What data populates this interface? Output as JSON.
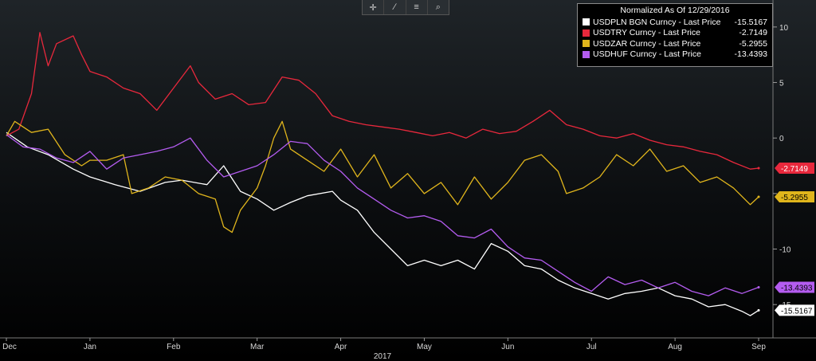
{
  "toolbar": {
    "icons": [
      "crosshair-icon",
      "draw-pencil-icon",
      "table-icon",
      "zoom-icon"
    ],
    "glyphs": [
      "✛",
      "∕",
      "≡",
      "⌕"
    ]
  },
  "chart_data": {
    "type": "line",
    "legend_title": "Normalized As Of 12/29/2016",
    "legend_placement": "top-right",
    "grid": false,
    "xlabel": "2017",
    "ylabel": "",
    "ylim": [
      -18,
      12
    ],
    "x_ticks": [
      "Dec",
      "Jan",
      "Feb",
      "Mar",
      "Apr",
      "May",
      "Jun",
      "Jul",
      "Aug",
      "Sep"
    ],
    "y_ticks": [
      10,
      5,
      0,
      -5,
      -10,
      -15
    ],
    "series": [
      {
        "name": "USDPLN BGN Curncy - Last Price",
        "last": -15.5167,
        "last_label": "-15.5167",
        "color": "#ffffff",
        "label_text_color": "#000000",
        "points": [
          [
            0,
            0.5
          ],
          [
            0.25,
            -0.8
          ],
          [
            0.5,
            -1.5
          ],
          [
            0.8,
            -2.8
          ],
          [
            1.0,
            -3.5
          ],
          [
            1.3,
            -4.2
          ],
          [
            1.6,
            -4.8
          ],
          [
            1.9,
            -4.0
          ],
          [
            2.1,
            -3.8
          ],
          [
            2.4,
            -4.2
          ],
          [
            2.6,
            -2.5
          ],
          [
            2.8,
            -4.8
          ],
          [
            3.0,
            -5.5
          ],
          [
            3.2,
            -6.5
          ],
          [
            3.4,
            -5.8
          ],
          [
            3.6,
            -5.2
          ],
          [
            3.9,
            -4.8
          ],
          [
            4.0,
            -5.6
          ],
          [
            4.2,
            -6.5
          ],
          [
            4.4,
            -8.5
          ],
          [
            4.6,
            -10.0
          ],
          [
            4.8,
            -11.5
          ],
          [
            5.0,
            -11.0
          ],
          [
            5.2,
            -11.5
          ],
          [
            5.4,
            -11.0
          ],
          [
            5.6,
            -11.8
          ],
          [
            5.8,
            -9.5
          ],
          [
            6.0,
            -10.2
          ],
          [
            6.2,
            -11.5
          ],
          [
            6.4,
            -11.8
          ],
          [
            6.6,
            -12.8
          ],
          [
            6.8,
            -13.5
          ],
          [
            7.0,
            -14.0
          ],
          [
            7.2,
            -14.5
          ],
          [
            7.4,
            -14.0
          ],
          [
            7.6,
            -13.8
          ],
          [
            7.8,
            -13.5
          ],
          [
            8.0,
            -14.2
          ],
          [
            8.2,
            -14.5
          ],
          [
            8.4,
            -15.2
          ],
          [
            8.6,
            -15.0
          ],
          [
            8.8,
            -15.6
          ],
          [
            8.9,
            -16.0
          ],
          [
            9.0,
            -15.5167
          ]
        ]
      },
      {
        "name": "USDTRY Curncy - Last Price",
        "last": -2.7149,
        "last_label": "-2.7149",
        "color": "#e8283c",
        "label_text_color": "#ffffff",
        "points": [
          [
            0,
            0.2
          ],
          [
            0.15,
            0.8
          ],
          [
            0.3,
            4.0
          ],
          [
            0.4,
            9.5
          ],
          [
            0.5,
            6.5
          ],
          [
            0.6,
            8.5
          ],
          [
            0.8,
            9.2
          ],
          [
            0.9,
            7.5
          ],
          [
            1.0,
            6.0
          ],
          [
            1.2,
            5.5
          ],
          [
            1.4,
            4.5
          ],
          [
            1.6,
            4.0
          ],
          [
            1.8,
            2.5
          ],
          [
            2.0,
            4.5
          ],
          [
            2.2,
            6.5
          ],
          [
            2.3,
            5.0
          ],
          [
            2.5,
            3.5
          ],
          [
            2.7,
            4.0
          ],
          [
            2.9,
            3.0
          ],
          [
            3.1,
            3.2
          ],
          [
            3.3,
            5.5
          ],
          [
            3.5,
            5.2
          ],
          [
            3.7,
            4.0
          ],
          [
            3.9,
            2.0
          ],
          [
            4.1,
            1.5
          ],
          [
            4.3,
            1.2
          ],
          [
            4.5,
            1.0
          ],
          [
            4.7,
            0.8
          ],
          [
            4.9,
            0.5
          ],
          [
            5.1,
            0.2
          ],
          [
            5.3,
            0.5
          ],
          [
            5.5,
            0.0
          ],
          [
            5.7,
            0.8
          ],
          [
            5.9,
            0.4
          ],
          [
            6.1,
            0.6
          ],
          [
            6.3,
            1.5
          ],
          [
            6.5,
            2.5
          ],
          [
            6.7,
            1.2
          ],
          [
            6.9,
            0.8
          ],
          [
            7.1,
            0.2
          ],
          [
            7.3,
            0.0
          ],
          [
            7.5,
            0.4
          ],
          [
            7.7,
            -0.2
          ],
          [
            7.9,
            -0.6
          ],
          [
            8.1,
            -0.8
          ],
          [
            8.3,
            -1.2
          ],
          [
            8.5,
            -1.5
          ],
          [
            8.7,
            -2.2
          ],
          [
            8.9,
            -2.8
          ],
          [
            9.0,
            -2.7149
          ]
        ]
      },
      {
        "name": "USDZAR Curncy - Last Price",
        "last": -5.2955,
        "last_label": "-5.2955",
        "color": "#e0b51c",
        "label_text_color": "#000000",
        "points": [
          [
            0,
            0.2
          ],
          [
            0.1,
            1.5
          ],
          [
            0.3,
            0.5
          ],
          [
            0.5,
            0.8
          ],
          [
            0.7,
            -1.5
          ],
          [
            0.9,
            -2.5
          ],
          [
            1.0,
            -2.0
          ],
          [
            1.2,
            -2.0
          ],
          [
            1.4,
            -1.5
          ],
          [
            1.5,
            -5.0
          ],
          [
            1.7,
            -4.5
          ],
          [
            1.9,
            -3.5
          ],
          [
            2.1,
            -3.8
          ],
          [
            2.3,
            -5.0
          ],
          [
            2.5,
            -5.5
          ],
          [
            2.6,
            -8.0
          ],
          [
            2.7,
            -8.5
          ],
          [
            2.8,
            -6.5
          ],
          [
            3.0,
            -4.5
          ],
          [
            3.1,
            -2.5
          ],
          [
            3.2,
            0.0
          ],
          [
            3.3,
            1.5
          ],
          [
            3.4,
            -1.0
          ],
          [
            3.6,
            -2.0
          ],
          [
            3.8,
            -3.0
          ],
          [
            4.0,
            -1.0
          ],
          [
            4.2,
            -3.5
          ],
          [
            4.4,
            -1.5
          ],
          [
            4.6,
            -4.5
          ],
          [
            4.8,
            -3.2
          ],
          [
            5.0,
            -5.0
          ],
          [
            5.2,
            -4.0
          ],
          [
            5.4,
            -6.0
          ],
          [
            5.6,
            -3.5
          ],
          [
            5.8,
            -5.5
          ],
          [
            6.0,
            -4.0
          ],
          [
            6.2,
            -2.0
          ],
          [
            6.4,
            -1.5
          ],
          [
            6.6,
            -3.0
          ],
          [
            6.7,
            -5.0
          ],
          [
            6.9,
            -4.5
          ],
          [
            7.1,
            -3.5
          ],
          [
            7.3,
            -1.5
          ],
          [
            7.5,
            -2.5
          ],
          [
            7.7,
            -1.0
          ],
          [
            7.9,
            -3.0
          ],
          [
            8.1,
            -2.5
          ],
          [
            8.3,
            -4.0
          ],
          [
            8.5,
            -3.5
          ],
          [
            8.7,
            -4.5
          ],
          [
            8.9,
            -6.0
          ],
          [
            9.0,
            -5.2955
          ]
        ]
      },
      {
        "name": "USDHUF Curncy - Last Price",
        "last": -13.4393,
        "last_label": "-13.4393",
        "color": "#b45cf0",
        "label_text_color": "#000000",
        "points": [
          [
            0,
            0.3
          ],
          [
            0.2,
            -0.8
          ],
          [
            0.4,
            -1.0
          ],
          [
            0.6,
            -1.8
          ],
          [
            0.8,
            -2.2
          ],
          [
            1.0,
            -1.2
          ],
          [
            1.2,
            -2.8
          ],
          [
            1.4,
            -1.8
          ],
          [
            1.6,
            -1.5
          ],
          [
            1.8,
            -1.2
          ],
          [
            2.0,
            -0.8
          ],
          [
            2.2,
            0.0
          ],
          [
            2.4,
            -2.0
          ],
          [
            2.6,
            -3.5
          ],
          [
            2.8,
            -3.0
          ],
          [
            3.0,
            -2.5
          ],
          [
            3.2,
            -1.5
          ],
          [
            3.4,
            -0.3
          ],
          [
            3.6,
            -0.5
          ],
          [
            3.8,
            -2.0
          ],
          [
            4.0,
            -3.0
          ],
          [
            4.2,
            -4.5
          ],
          [
            4.4,
            -5.5
          ],
          [
            4.6,
            -6.5
          ],
          [
            4.8,
            -7.2
          ],
          [
            5.0,
            -7.0
          ],
          [
            5.2,
            -7.5
          ],
          [
            5.4,
            -8.8
          ],
          [
            5.6,
            -9.0
          ],
          [
            5.8,
            -8.2
          ],
          [
            6.0,
            -9.8
          ],
          [
            6.2,
            -10.8
          ],
          [
            6.4,
            -11.0
          ],
          [
            6.6,
            -12.0
          ],
          [
            6.8,
            -13.0
          ],
          [
            7.0,
            -13.8
          ],
          [
            7.2,
            -12.5
          ],
          [
            7.4,
            -13.2
          ],
          [
            7.6,
            -12.8
          ],
          [
            7.8,
            -13.5
          ],
          [
            8.0,
            -13.0
          ],
          [
            8.2,
            -13.8
          ],
          [
            8.4,
            -14.2
          ],
          [
            8.6,
            -13.5
          ],
          [
            8.8,
            -14.0
          ],
          [
            9.0,
            -13.4393
          ]
        ]
      }
    ]
  }
}
